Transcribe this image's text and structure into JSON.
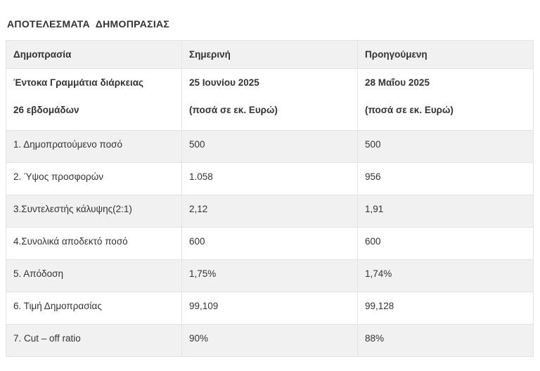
{
  "page_title": "ΑΠΟΤΕΛΕΣΜΑΤΑ  ΔΗΜΟΠΡΑΣΙΑΣ",
  "table": {
    "headers": [
      "Δημοπρασία",
      "Σημερινή",
      "Προηγούμενη"
    ],
    "period_row": {
      "label_lines": [
        "Έντοκα Γραμμάτια διάρκειας",
        "26 εβδομάδων"
      ],
      "current_lines": [
        "25 Ιουνίου 2025",
        "(ποσά σε εκ. Ευρώ)"
      ],
      "previous_lines": [
        "28 Μαΐου 2025",
        "(ποσά σε εκ. Ευρώ)"
      ]
    },
    "rows": [
      {
        "label": "1. Δημοπρατούμενο ποσό",
        "current": "500",
        "previous": "500"
      },
      {
        "label": "2. Ύψος προσφορών",
        "current": "1.058",
        "previous": "956"
      },
      {
        "label": "3.Συντελεστής κάλυψης(2:1)",
        "current": "2,12",
        "previous": "1,91"
      },
      {
        "label": "4.Συνολικά αποδεκτό ποσό",
        "current": "600",
        "previous": "600"
      },
      {
        "label": "5. Απόδοση",
        "current": "1,75%",
        "previous": "1,74%"
      },
      {
        "label": "6. Τιμή Δημοπρασίας",
        "current": "99,109",
        "previous": "99,128"
      },
      {
        "label": "7. Cut – off ratio",
        "current": "90%",
        "previous": "88%"
      }
    ]
  },
  "colors": {
    "stripe_bg": "#f1f1f1",
    "border": "#e3e3e3",
    "text": "#333333"
  }
}
